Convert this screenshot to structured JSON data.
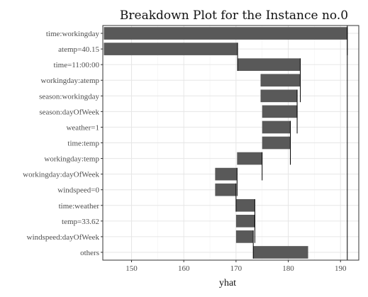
{
  "chart_data": {
    "type": "bar",
    "orientation": "horizontal-waterfall",
    "title": "Breakdown Plot for the Instance no.0",
    "xlabel": "yhat",
    "ylabel": "",
    "xlim": [
      144.5,
      193.5
    ],
    "xticks": [
      150,
      160,
      170,
      180,
      190
    ],
    "grid": true,
    "bar_color": "#595959",
    "final_prediction": 191.3,
    "categories": [
      "time:workingday",
      "atemp=40.15",
      "time=11:00:00",
      "workingday:atemp",
      "season:workingday",
      "season:dayOfWeek",
      "weather=1",
      "time:temp",
      "workingday:temp",
      "workingday:dayOfWeek",
      "windspeed=0",
      "time:weather",
      "temp=33.62",
      "windspeed:dayOfWeek",
      "others"
    ],
    "bars": [
      {
        "start": 144.7,
        "end": 191.3
      },
      {
        "start": 144.7,
        "end": 170.3
      },
      {
        "start": 170.3,
        "end": 182.3
      },
      {
        "start": 174.7,
        "end": 182.3
      },
      {
        "start": 174.7,
        "end": 181.7
      },
      {
        "start": 175.0,
        "end": 181.7
      },
      {
        "start": 175.0,
        "end": 180.4
      },
      {
        "start": 175.0,
        "end": 180.4
      },
      {
        "start": 170.2,
        "end": 175.0
      },
      {
        "start": 166.0,
        "end": 170.2
      },
      {
        "start": 166.0,
        "end": 170.0
      },
      {
        "start": 170.0,
        "end": 173.6
      },
      {
        "start": 170.0,
        "end": 173.6
      },
      {
        "start": 170.0,
        "end": 173.3
      },
      {
        "start": 173.3,
        "end": 183.8
      }
    ]
  }
}
